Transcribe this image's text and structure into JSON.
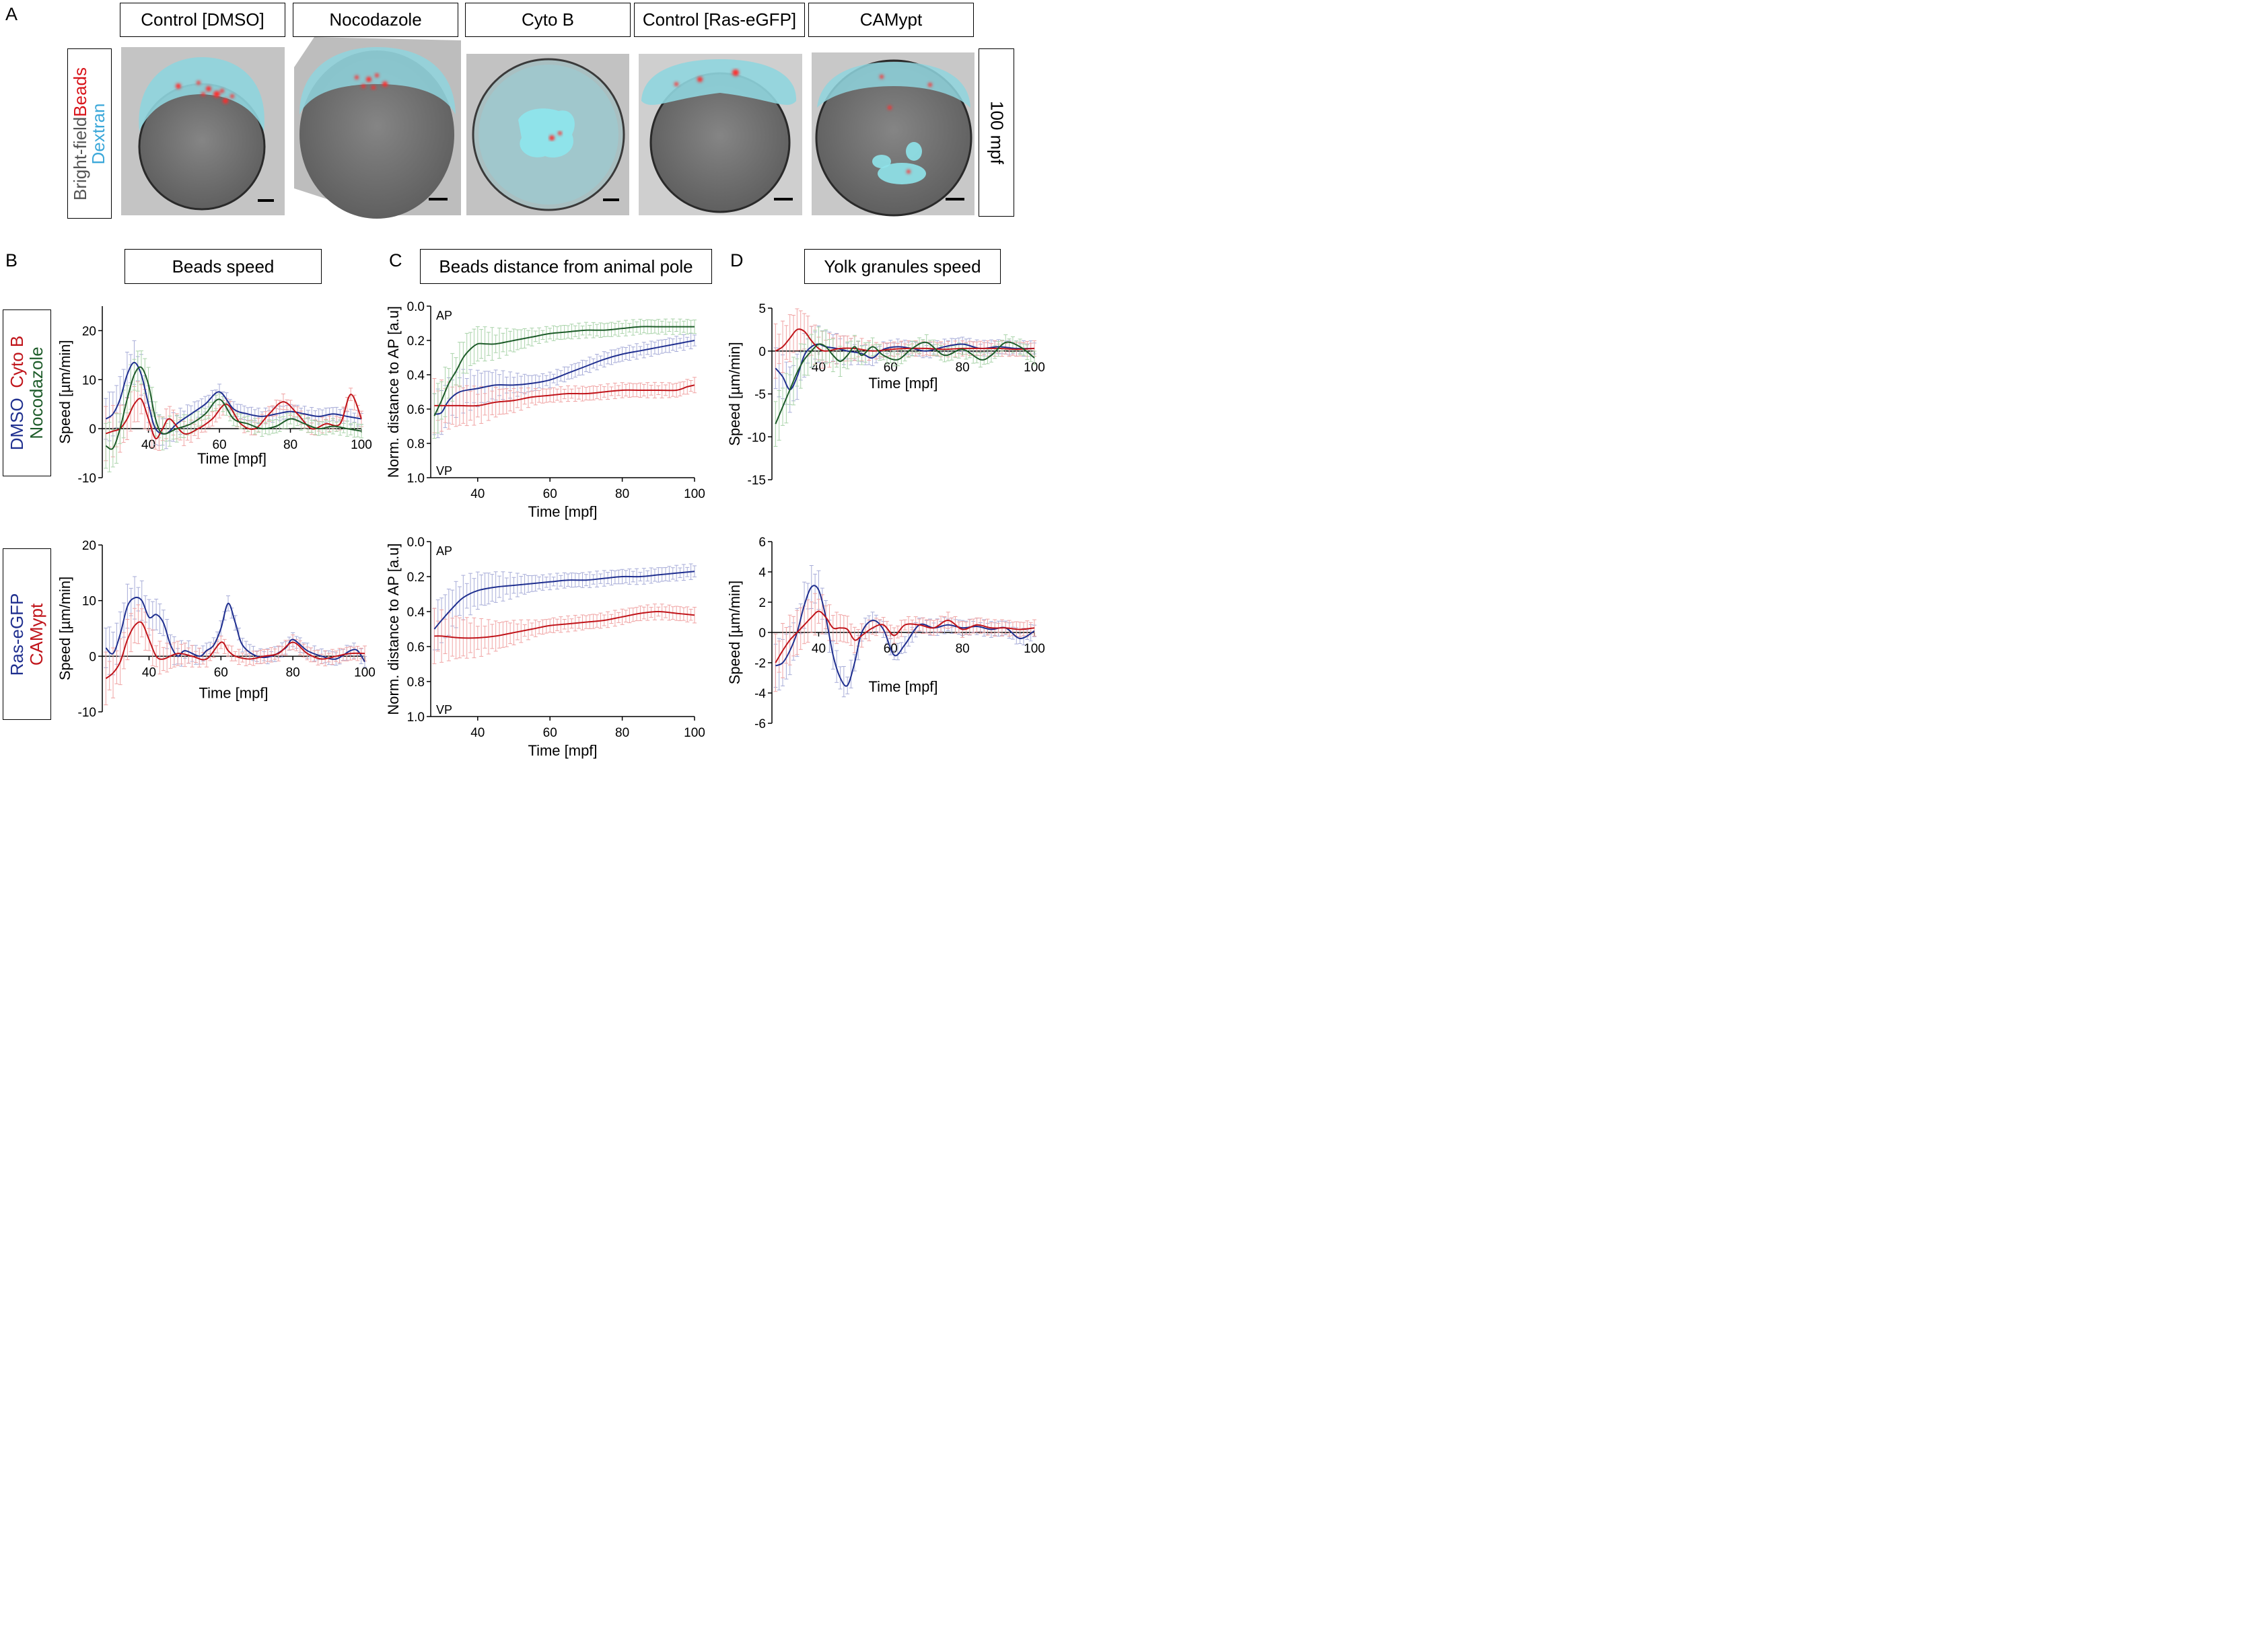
{
  "panel_letters": {
    "a": "A",
    "b": "B",
    "c": "C",
    "d": "D"
  },
  "row_a": {
    "titles": [
      "Control [DMSO]",
      "Nocodazole",
      "Cyto B",
      "Control [Ras-eGFP]",
      "CAMypt"
    ],
    "side_label": {
      "line1_gray": "Bright-field",
      "line1_red": "Beads",
      "line2_blue": "Dextran"
    },
    "time_label": "100 mpf",
    "colors": {
      "cyan": "#7fd3dc",
      "yolk": "#6f6f6f",
      "bead": "#ff2a2a",
      "bg": "#c8c8c8"
    }
  },
  "section_titles": {
    "b": "Beads speed",
    "c": "Beads distance from animal pole",
    "d": "Yolk granules speed"
  },
  "legend_b1": {
    "dmso": "DMSO",
    "cytob": "Cyto B",
    "noco": "Nocodazole"
  },
  "legend_b2": {
    "ras": "Ras-eGFP",
    "camypt": "CAMypt"
  },
  "colors": {
    "blue": "#1f2f8f",
    "red": "#c0141a",
    "green": "#1e5c2a",
    "blue_err": "#a7acd8",
    "red_err": "#f0a3a3",
    "green_err": "#a9d3a9"
  },
  "chart_data": [
    {
      "id": "B1",
      "type": "line",
      "xlabel": "Time [mpf]",
      "ylabel": "Speed [µm/min]",
      "xlim": [
        27,
        100
      ],
      "ylim": [
        -10,
        25
      ],
      "xticks": [
        40,
        60,
        80,
        100
      ],
      "yticks": [
        -10,
        0,
        10,
        20
      ],
      "series": [
        {
          "name": "DMSO",
          "color": "blue",
          "x": [
            28,
            30,
            32,
            34,
            36,
            38,
            40,
            42,
            45,
            48,
            52,
            56,
            60,
            64,
            68,
            72,
            76,
            80,
            84,
            88,
            92,
            96,
            100
          ],
          "y": [
            2,
            3,
            6,
            11,
            13.5,
            11,
            5,
            0,
            -1,
            1,
            3,
            5,
            7.5,
            4,
            3,
            2.5,
            3,
            3.5,
            3,
            2.5,
            3,
            2.5,
            2
          ]
        },
        {
          "name": "Cyto B",
          "color": "red",
          "x": [
            28,
            30,
            32,
            34,
            36,
            38,
            40,
            42,
            44,
            46,
            50,
            54,
            58,
            62,
            66,
            70,
            74,
            78,
            82,
            86,
            90,
            94,
            97,
            100
          ],
          "y": [
            -1,
            -0.5,
            0,
            2,
            5,
            6,
            2,
            -2,
            0,
            2,
            -1,
            0,
            2,
            5,
            1,
            0,
            3,
            5.5,
            3,
            0,
            1,
            1,
            7,
            2
          ]
        },
        {
          "name": "Nocodazole",
          "color": "green",
          "x": [
            28,
            30,
            32,
            34,
            36,
            38,
            40,
            42,
            44,
            48,
            52,
            56,
            60,
            64,
            68,
            72,
            76,
            80,
            84,
            88,
            92,
            96,
            100
          ],
          "y": [
            -3.5,
            -4,
            0,
            6,
            11,
            12.5,
            9,
            2,
            -1,
            0,
            1,
            3,
            6,
            2,
            1,
            0,
            0.5,
            2,
            1,
            0,
            0.5,
            0,
            -0.5
          ]
        }
      ]
    },
    {
      "id": "B2",
      "type": "line",
      "xlabel": "Time [mpf]",
      "ylabel": "Speed [µm/min]",
      "xlim": [
        27,
        100
      ],
      "ylim": [
        -10,
        20
      ],
      "xticks": [
        40,
        60,
        80,
        100
      ],
      "yticks": [
        -10,
        0,
        10,
        20
      ],
      "series": [
        {
          "name": "Ras-eGFP",
          "color": "blue",
          "x": [
            28,
            30,
            32,
            34,
            36,
            38,
            40,
            42,
            44,
            46,
            48,
            50,
            54,
            56,
            58,
            60,
            62,
            64,
            66,
            70,
            74,
            78,
            80,
            84,
            88,
            92,
            96,
            98,
            100
          ],
          "y": [
            1.5,
            0.5,
            4,
            9,
            10.5,
            10,
            7,
            7.5,
            6,
            2,
            0,
            1,
            0,
            1,
            2,
            5,
            9.5,
            6,
            2,
            0,
            0,
            1.5,
            3,
            1,
            0,
            -0.5,
            1,
            1,
            -1
          ]
        },
        {
          "name": "CAMypt",
          "color": "red",
          "x": [
            28,
            30,
            32,
            34,
            36,
            38,
            40,
            42,
            44,
            48,
            52,
            56,
            60,
            62,
            64,
            68,
            72,
            76,
            80,
            84,
            88,
            92,
            96,
            100
          ],
          "y": [
            -4,
            -3,
            -1,
            3,
            5.5,
            6,
            3,
            0,
            -0.5,
            0.5,
            0,
            -0.5,
            2.5,
            1,
            0,
            -0.5,
            0,
            0.5,
            2.5,
            0.5,
            -0.5,
            0,
            0.5,
            0.5
          ]
        }
      ]
    },
    {
      "id": "C1",
      "type": "line",
      "xlabel": "Time [mpf]",
      "ylabel": "Norm. distance to AP [a.u]",
      "xlim": [
        27,
        100
      ],
      "ylim": [
        0,
        1
      ],
      "y_inverted": true,
      "xticks": [
        40,
        60,
        80,
        100
      ],
      "yticks": [
        0.0,
        0.2,
        0.4,
        0.6,
        0.8,
        1.0
      ],
      "annotations": [
        "AP",
        "VP"
      ],
      "series": [
        {
          "name": "DMSO",
          "color": "blue",
          "x": [
            28,
            30,
            32,
            35,
            40,
            45,
            50,
            55,
            60,
            65,
            70,
            75,
            80,
            85,
            90,
            95,
            100
          ],
          "y": [
            0.63,
            0.62,
            0.55,
            0.5,
            0.48,
            0.46,
            0.46,
            0.45,
            0.43,
            0.39,
            0.35,
            0.31,
            0.28,
            0.26,
            0.24,
            0.22,
            0.2
          ]
        },
        {
          "name": "Cyto B",
          "color": "red",
          "x": [
            28,
            30,
            35,
            40,
            45,
            50,
            55,
            60,
            65,
            70,
            75,
            80,
            85,
            90,
            95,
            98,
            100
          ],
          "y": [
            0.58,
            0.58,
            0.58,
            0.58,
            0.56,
            0.55,
            0.53,
            0.52,
            0.51,
            0.51,
            0.5,
            0.49,
            0.49,
            0.49,
            0.49,
            0.47,
            0.46
          ]
        },
        {
          "name": "Nocodazole",
          "color": "green",
          "x": [
            28,
            30,
            32,
            34,
            36,
            38,
            40,
            42,
            45,
            50,
            55,
            60,
            65,
            70,
            75,
            80,
            85,
            90,
            95,
            100
          ],
          "y": [
            0.64,
            0.55,
            0.45,
            0.38,
            0.3,
            0.25,
            0.22,
            0.22,
            0.22,
            0.2,
            0.18,
            0.16,
            0.15,
            0.14,
            0.14,
            0.13,
            0.12,
            0.12,
            0.12,
            0.12
          ]
        }
      ]
    },
    {
      "id": "C2",
      "type": "line",
      "xlabel": "Time [mpf]",
      "ylabel": "Norm. distance to AP [a.u]",
      "xlim": [
        27,
        100
      ],
      "ylim": [
        0,
        1
      ],
      "y_inverted": true,
      "xticks": [
        40,
        60,
        80,
        100
      ],
      "yticks": [
        0.0,
        0.2,
        0.4,
        0.6,
        0.8,
        1.0
      ],
      "annotations": [
        "AP",
        "VP"
      ],
      "series": [
        {
          "name": "Ras-eGFP",
          "color": "blue",
          "x": [
            28,
            30,
            33,
            36,
            40,
            45,
            50,
            55,
            60,
            65,
            70,
            75,
            80,
            85,
            90,
            95,
            100
          ],
          "y": [
            0.5,
            0.45,
            0.38,
            0.32,
            0.28,
            0.26,
            0.25,
            0.24,
            0.23,
            0.22,
            0.22,
            0.21,
            0.2,
            0.2,
            0.19,
            0.18,
            0.17
          ]
        },
        {
          "name": "CAMypt",
          "color": "red",
          "x": [
            28,
            30,
            35,
            40,
            45,
            50,
            55,
            60,
            65,
            70,
            75,
            80,
            85,
            90,
            95,
            100
          ],
          "y": [
            0.54,
            0.54,
            0.55,
            0.55,
            0.54,
            0.52,
            0.5,
            0.48,
            0.47,
            0.46,
            0.45,
            0.43,
            0.41,
            0.4,
            0.41,
            0.42
          ]
        }
      ]
    },
    {
      "id": "D1",
      "type": "line",
      "xlabel": "Time [mpf]",
      "ylabel": "Speed [µm/min]",
      "xlim": [
        27,
        100
      ],
      "ylim": [
        -15,
        5
      ],
      "xticks": [
        40,
        60,
        80,
        100
      ],
      "yticks": [
        -15,
        -10,
        -5,
        0,
        5
      ],
      "series": [
        {
          "name": "DMSO",
          "color": "blue",
          "x": [
            28,
            30,
            32,
            34,
            36,
            38,
            40,
            42,
            45,
            48,
            52,
            55,
            58,
            62,
            66,
            70,
            75,
            80,
            85,
            90,
            95,
            100
          ],
          "y": [
            -2,
            -3,
            -4.5,
            -3,
            -0.5,
            0.5,
            0.8,
            0.5,
            0.3,
            0,
            -0.3,
            -0.8,
            0.2,
            0.5,
            0.3,
            0,
            0.5,
            0.8,
            0.3,
            0.5,
            0.3,
            0.3
          ]
        },
        {
          "name": "Cyto B",
          "color": "red",
          "x": [
            28,
            30,
            32,
            34,
            36,
            38,
            40,
            42,
            46,
            50,
            55,
            60,
            65,
            70,
            75,
            80,
            85,
            90,
            95,
            100
          ],
          "y": [
            0,
            0.5,
            1.5,
            2.5,
            2.3,
            1.2,
            0.3,
            0,
            0.3,
            0.3,
            0,
            0.2,
            0.3,
            0.3,
            0.2,
            0.3,
            0.3,
            0.3,
            0.2,
            0.3
          ]
        },
        {
          "name": "Nocodazole",
          "color": "green",
          "x": [
            28,
            30,
            32,
            34,
            36,
            38,
            40,
            42,
            44,
            46,
            48,
            50,
            52,
            55,
            58,
            62,
            66,
            70,
            75,
            80,
            85,
            88,
            92,
            96,
            100
          ],
          "y": [
            -8.5,
            -6.5,
            -4.5,
            -2.5,
            -1,
            0,
            0.8,
            0.5,
            -0.5,
            -1.2,
            -0.5,
            0.5,
            -0.5,
            0.5,
            -0.5,
            -1,
            0.3,
            1,
            -0.5,
            0.2,
            -1,
            -0.5,
            1,
            0.5,
            -0.8
          ]
        }
      ]
    },
    {
      "id": "D2",
      "type": "line",
      "xlabel": "Time [mpf]",
      "ylabel": "Speed [µm/min]",
      "xlim": [
        27,
        100
      ],
      "ylim": [
        -6,
        6
      ],
      "xticks": [
        40,
        60,
        80,
        100
      ],
      "yticks": [
        -6,
        -4,
        -2,
        0,
        2,
        4,
        6
      ],
      "series": [
        {
          "name": "Ras-eGFP",
          "color": "blue",
          "x": [
            28,
            30,
            32,
            34,
            36,
            38,
            40,
            42,
            44,
            46,
            48,
            50,
            52,
            55,
            58,
            61,
            64,
            68,
            72,
            76,
            80,
            84,
            88,
            92,
            96,
            100
          ],
          "y": [
            -2.2,
            -2,
            -1.2,
            0,
            1.8,
            3,
            2.8,
            1,
            -1.5,
            -3,
            -3.5,
            -2,
            0,
            0.8,
            0.2,
            -1.5,
            -0.8,
            0.5,
            0.3,
            0.5,
            0.3,
            0.4,
            0.2,
            0.3,
            -0.4,
            0.1
          ]
        },
        {
          "name": "CAMypt",
          "color": "red",
          "x": [
            28,
            30,
            32,
            34,
            36,
            38,
            40,
            42,
            44,
            46,
            48,
            50,
            52,
            55,
            58,
            61,
            64,
            68,
            72,
            76,
            80,
            84,
            88,
            92,
            96,
            100
          ],
          "y": [
            -2,
            -1.2,
            -0.5,
            0,
            0.5,
            1,
            1.4,
            1,
            0.3,
            0.3,
            0.2,
            -0.5,
            -0.2,
            0.3,
            0.5,
            -0.2,
            0.5,
            0.5,
            0.3,
            0.8,
            0.2,
            0.5,
            0.3,
            0.3,
            0.2,
            0.3
          ]
        }
      ]
    }
  ]
}
